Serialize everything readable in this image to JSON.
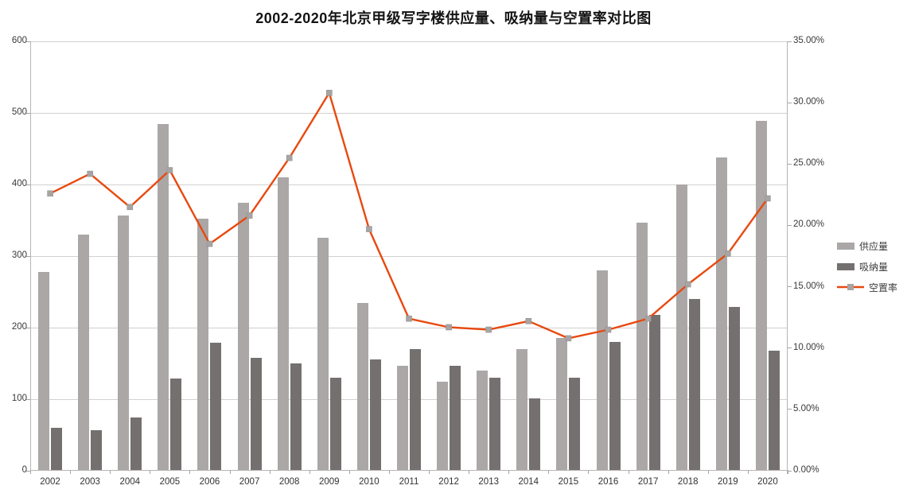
{
  "title": "2002-2020年北京甲级写字楼供应量、吸纳量与空置率对比图",
  "chart_data": {
    "type": "combo-bar-line",
    "grid": true,
    "legend_position": "right",
    "categories": [
      "2002",
      "2003",
      "2004",
      "2005",
      "2006",
      "2007",
      "2008",
      "2009",
      "2010",
      "2011",
      "2012",
      "2013",
      "2014",
      "2015",
      "2016",
      "2017",
      "2018",
      "2019",
      "2020"
    ],
    "series": [
      {
        "key": "supply",
        "name": "供应量",
        "type": "bar",
        "axis": "left",
        "color": "#aba7a7",
        "values": [
          278,
          330,
          357,
          485,
          352,
          374,
          410,
          326,
          234,
          147,
          124,
          140,
          170,
          186,
          280,
          347,
          400,
          438,
          489
        ]
      },
      {
        "key": "absorption",
        "name": "吸纳量",
        "type": "bar",
        "axis": "left",
        "color": "#757070",
        "values": [
          60,
          57,
          74,
          129,
          179,
          158,
          150,
          130,
          156,
          170,
          147,
          130,
          101,
          130,
          180,
          218,
          240,
          229,
          168
        ]
      },
      {
        "key": "vacancy",
        "name": "空置率",
        "type": "line",
        "axis": "right",
        "color": "#e8490f",
        "marker_color": "#a7a4a4",
        "values": [
          22.6,
          24.2,
          21.5,
          24.5,
          18.5,
          20.8,
          25.5,
          30.8,
          19.7,
          12.4,
          11.7,
          11.5,
          12.2,
          10.8,
          11.5,
          12.4,
          15.2,
          17.7,
          22.2
        ]
      }
    ],
    "left_axis": {
      "min": 0,
      "max": 600,
      "step": 100,
      "labels": [
        "0",
        "100",
        "200",
        "300",
        "400",
        "500",
        "600"
      ]
    },
    "right_axis": {
      "min": 0,
      "max": 35,
      "step": 5,
      "labels": [
        "0.00%",
        "5.00%",
        "10.00%",
        "15.00%",
        "20.00%",
        "25.00%",
        "30.00%",
        "35.00%"
      ]
    }
  }
}
